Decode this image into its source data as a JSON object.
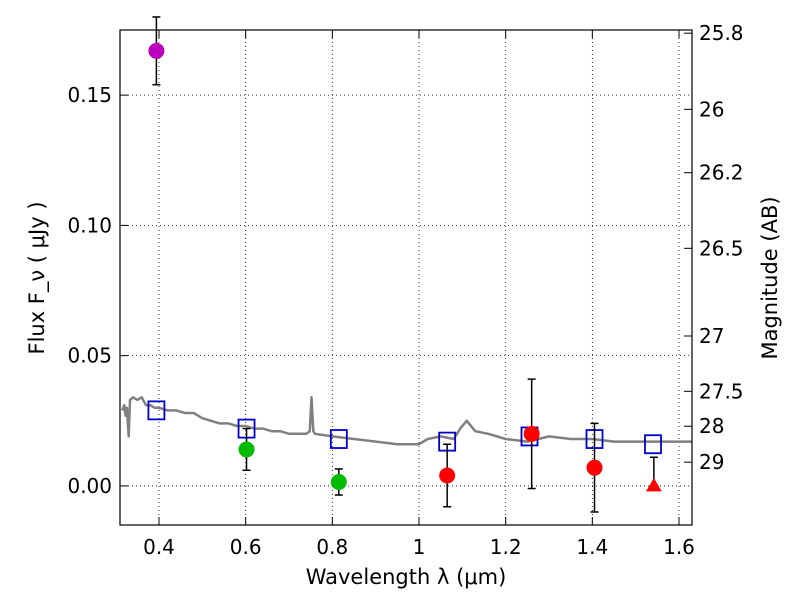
{
  "chart_data": {
    "type": "scatter",
    "xlabel": "Wavelength  λ (μm)",
    "ylabel": "Flux  F_ν  ( μJy )",
    "ylabel_right": "Magnitude (AB)",
    "xlim": [
      0.31,
      1.63
    ],
    "ylim": [
      -0.015,
      0.175
    ],
    "grid": true,
    "x_ticks": [
      {
        "value": 0.4,
        "label": "0.4"
      },
      {
        "value": 0.6,
        "label": "0.6"
      },
      {
        "value": 0.8,
        "label": "0.8"
      },
      {
        "value": 1.0,
        "label": "1"
      },
      {
        "value": 1.2,
        "label": "1.2"
      },
      {
        "value": 1.4,
        "label": "1.4"
      },
      {
        "value": 1.6,
        "label": "1.6"
      }
    ],
    "y_ticks": [
      {
        "value": 0.0,
        "label": "0.00"
      },
      {
        "value": 0.05,
        "label": "0.05"
      },
      {
        "value": 0.1,
        "label": "0.10"
      },
      {
        "value": 0.15,
        "label": "0.15"
      }
    ],
    "mag_ticks": [
      {
        "value": 25.8,
        "label": "25.8"
      },
      {
        "value": 26.0,
        "label": "26"
      },
      {
        "value": 26.2,
        "label": "26.2"
      },
      {
        "value": 26.5,
        "label": "26.5"
      },
      {
        "value": 27.0,
        "label": "27"
      },
      {
        "value": 27.5,
        "label": "27.5"
      },
      {
        "value": 28.0,
        "label": "28"
      },
      {
        "value": 29.0,
        "label": "29"
      }
    ],
    "model_spectrum": {
      "color": "#808080",
      "points": [
        [
          0.315,
          0.029
        ],
        [
          0.32,
          0.031
        ],
        [
          0.323,
          0.027
        ],
        [
          0.326,
          0.03
        ],
        [
          0.33,
          0.019
        ],
        [
          0.333,
          0.033
        ],
        [
          0.34,
          0.034
        ],
        [
          0.35,
          0.033
        ],
        [
          0.36,
          0.034
        ],
        [
          0.37,
          0.031
        ],
        [
          0.38,
          0.031
        ],
        [
          0.39,
          0.03
        ],
        [
          0.4,
          0.03
        ],
        [
          0.42,
          0.029
        ],
        [
          0.44,
          0.029
        ],
        [
          0.46,
          0.028
        ],
        [
          0.48,
          0.028
        ],
        [
          0.5,
          0.026
        ],
        [
          0.52,
          0.025
        ],
        [
          0.54,
          0.024
        ],
        [
          0.56,
          0.024
        ],
        [
          0.58,
          0.023
        ],
        [
          0.6,
          0.023
        ],
        [
          0.62,
          0.022
        ],
        [
          0.64,
          0.022
        ],
        [
          0.66,
          0.021
        ],
        [
          0.68,
          0.021
        ],
        [
          0.7,
          0.02
        ],
        [
          0.72,
          0.02
        ],
        [
          0.74,
          0.02
        ],
        [
          0.748,
          0.021
        ],
        [
          0.752,
          0.034
        ],
        [
          0.756,
          0.021
        ],
        [
          0.76,
          0.02
        ],
        [
          0.8,
          0.019
        ],
        [
          0.85,
          0.018
        ],
        [
          0.9,
          0.017
        ],
        [
          0.95,
          0.016
        ],
        [
          1.0,
          0.016
        ],
        [
          1.02,
          0.018
        ],
        [
          1.05,
          0.019
        ],
        [
          1.08,
          0.018
        ],
        [
          1.095,
          0.022
        ],
        [
          1.11,
          0.025
        ],
        [
          1.13,
          0.021
        ],
        [
          1.16,
          0.02
        ],
        [
          1.2,
          0.018
        ],
        [
          1.25,
          0.017
        ],
        [
          1.3,
          0.019
        ],
        [
          1.35,
          0.018
        ],
        [
          1.4,
          0.018
        ],
        [
          1.45,
          0.017
        ],
        [
          1.5,
          0.017
        ],
        [
          1.55,
          0.017
        ],
        [
          1.6,
          0.017
        ],
        [
          1.63,
          0.017
        ]
      ]
    },
    "model_points": {
      "marker": "square",
      "color": "#0000cc",
      "points": [
        {
          "x": 0.394,
          "y": 0.029
        },
        {
          "x": 0.602,
          "y": 0.022
        },
        {
          "x": 0.815,
          "y": 0.018
        },
        {
          "x": 1.065,
          "y": 0.017
        },
        {
          "x": 1.255,
          "y": 0.019
        },
        {
          "x": 1.405,
          "y": 0.018
        },
        {
          "x": 1.54,
          "y": 0.016
        }
      ]
    },
    "series": [
      {
        "color": "#bb00bb",
        "marker": "circle",
        "points": [
          {
            "x": 0.394,
            "y": 0.167,
            "yerr": 0.013
          }
        ]
      },
      {
        "color": "#00bb00",
        "marker": "circle",
        "points": [
          {
            "x": 0.602,
            "y": 0.014,
            "yerr": 0.008
          },
          {
            "x": 0.815,
            "y": 0.0015,
            "yerr": 0.005
          }
        ]
      },
      {
        "color": "#ff0000",
        "marker": "circle",
        "points": [
          {
            "x": 1.065,
            "y": 0.004,
            "yerr": 0.012
          },
          {
            "x": 1.26,
            "y": 0.02,
            "yerr": 0.021
          },
          {
            "x": 1.405,
            "y": 0.007,
            "yerr": 0.017
          }
        ]
      },
      {
        "color": "#ff0000",
        "marker": "triangle",
        "points": [
          {
            "x": 1.542,
            "y": 0.0,
            "yerr_upper": 0.011
          }
        ]
      }
    ]
  }
}
